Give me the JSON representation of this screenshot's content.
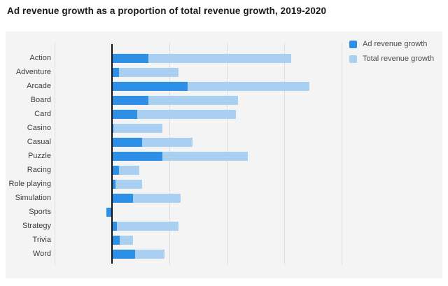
{
  "page": {
    "title": "Ad revenue growth as a proportion of total revenue growth, 2019-2020"
  },
  "colors": {
    "ad_revenue": "#2e8fe6",
    "total_revenue": "#a9cff1",
    "plot_background": "#f4f4f5",
    "gridline": "#dddddf",
    "zero_axis": "#111111",
    "title_text": "#1a1a1a",
    "category_label_text": "#3d3d3d",
    "legend_text": "#4d4d4d"
  },
  "legend": {
    "items": [
      {
        "label": "Ad revenue growth",
        "color_key": "ad_revenue"
      },
      {
        "label": "Total revenue growth",
        "color_key": "total_revenue"
      }
    ]
  },
  "chart_data": {
    "type": "bar",
    "orientation": "horizontal",
    "title": "Ad revenue growth as a proportion of total revenue growth, 2019-2020",
    "xlabel": "",
    "ylabel": "",
    "categories": [
      "Action",
      "Adventure",
      "Arcade",
      "Board",
      "Card",
      "Casino",
      "Casual",
      "Puzzle",
      "Racing",
      "Role playing",
      "Simulation",
      "Sports",
      "Strategy",
      "Trivia",
      "Word"
    ],
    "series": [
      {
        "name": "Ad revenue growth",
        "values": [
          16,
          3,
          33,
          16,
          11,
          0.5,
          13,
          22,
          3,
          1.5,
          9,
          -2.5,
          2,
          3.5,
          10
        ]
      },
      {
        "name": "Total revenue growth",
        "values": [
          78,
          29,
          86,
          55,
          54,
          22,
          35,
          59,
          12,
          13,
          30,
          0,
          29,
          9,
          23
        ]
      }
    ],
    "xlim": [
      -25,
      144
    ],
    "x_gridlines": [
      -25,
      25,
      50,
      75,
      100
    ],
    "baseline": 0,
    "x_tick_labels_visible": false,
    "note": "x-axis has no visible tick labels; values are estimated in relative units where one gridline interval = 25",
    "grid": true,
    "legend_position": "top-right"
  }
}
